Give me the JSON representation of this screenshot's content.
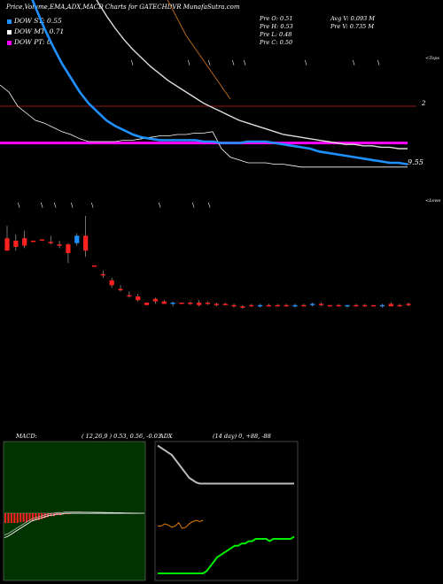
{
  "header": {
    "title": "Price,Volume,EMA,ADX,MACD Charts for GATECHDVR MunafaSutra.com",
    "open": "Pre  O: 0.51",
    "high": "Pre  H: 0.53",
    "low": "Pre  L: 0.48",
    "close": "Pre  C: 0.50",
    "avg_vol": "Avg V: 0.093 M",
    "pre_vol": "Pre  V: 0.735 M"
  },
  "legend": [
    {
      "label": "DOW ST: 0.55",
      "color": "#1e90ff"
    },
    {
      "label": "DOW MT: 0.71",
      "color": "#ffffff"
    },
    {
      "label": "DOW PT: 0",
      "color": "#ff00ff"
    }
  ],
  "labels": {
    "price_marker": "9.55",
    "top_tag": "<Tops",
    "low_tag": "<Lows",
    "level_2": "2"
  },
  "macd_panel": {
    "title": "MACD:",
    "params": "( 12,26,9 ) 0.53,  0.56,  -0.03"
  },
  "adx_panel": {
    "title": "ADX",
    "params": "(14  day) 0,  +88,  -88"
  },
  "colors": {
    "up": "#1e90ff",
    "down": "#ff2020",
    "macd_bg": "#003300",
    "adx_line": "#00ee00",
    "pdi": "#ff8800"
  },
  "chart_data": {
    "type": "candlestick",
    "title": "Price,Volume,EMA,ADX,MACD Charts for GATECHDVR MunafaSutra.com",
    "ohlc": [
      {
        "o": 1.02,
        "h": 1.12,
        "l": 0.92,
        "c": 0.92,
        "dir": "down"
      },
      {
        "o": 0.95,
        "h": 1.05,
        "l": 0.92,
        "c": 1.0,
        "dir": "down"
      },
      {
        "o": 0.96,
        "h": 1.08,
        "l": 0.94,
        "c": 1.02,
        "dir": "down"
      },
      {
        "o": 1.0,
        "h": 1.0,
        "l": 1.0,
        "c": 1.0,
        "dir": "down"
      },
      {
        "o": 1.01,
        "h": 1.01,
        "l": 1.01,
        "c": 1.01,
        "dir": "down"
      },
      {
        "o": 0.99,
        "h": 1.04,
        "l": 0.97,
        "c": 0.99,
        "dir": "down"
      },
      {
        "o": 0.97,
        "h": 1.0,
        "l": 0.94,
        "c": 0.96,
        "dir": "down"
      },
      {
        "o": 0.97,
        "h": 0.98,
        "l": 0.82,
        "c": 0.9,
        "dir": "down"
      },
      {
        "o": 0.98,
        "h": 1.06,
        "l": 0.96,
        "c": 1.04,
        "dir": "up"
      },
      {
        "o": 1.04,
        "h": 1.2,
        "l": 0.87,
        "c": 0.92,
        "dir": "down"
      },
      {
        "o": 0.8,
        "h": 0.8,
        "l": 0.8,
        "c": 0.8,
        "dir": "down"
      },
      {
        "o": 0.73,
        "h": 0.76,
        "l": 0.7,
        "c": 0.72,
        "dir": "down"
      },
      {
        "o": 0.68,
        "h": 0.7,
        "l": 0.62,
        "c": 0.64,
        "dir": "down"
      },
      {
        "o": 0.61,
        "h": 0.64,
        "l": 0.59,
        "c": 0.6,
        "dir": "down"
      },
      {
        "o": 0.56,
        "h": 0.59,
        "l": 0.54,
        "c": 0.55,
        "dir": "down"
      },
      {
        "o": 0.55,
        "h": 0.57,
        "l": 0.51,
        "c": 0.52,
        "dir": "down"
      },
      {
        "o": 0.5,
        "h": 0.5,
        "l": 0.48,
        "c": 0.48,
        "dir": "down"
      },
      {
        "o": 0.53,
        "h": 0.54,
        "l": 0.49,
        "c": 0.51,
        "dir": "down"
      },
      {
        "o": 0.51,
        "h": 0.52,
        "l": 0.49,
        "c": 0.49,
        "dir": "down"
      },
      {
        "o": 0.49,
        "h": 0.51,
        "l": 0.47,
        "c": 0.5,
        "dir": "up"
      },
      {
        "o": 0.5,
        "h": 0.5,
        "l": 0.5,
        "c": 0.5,
        "dir": "down"
      },
      {
        "o": 0.5,
        "h": 0.51,
        "l": 0.48,
        "c": 0.49,
        "dir": "down"
      },
      {
        "o": 0.5,
        "h": 0.52,
        "l": 0.47,
        "c": 0.48,
        "dir": "down"
      },
      {
        "o": 0.5,
        "h": 0.51,
        "l": 0.48,
        "c": 0.49,
        "dir": "down"
      },
      {
        "o": 0.49,
        "h": 0.5,
        "l": 0.47,
        "c": 0.48,
        "dir": "down"
      },
      {
        "o": 0.49,
        "h": 0.5,
        "l": 0.48,
        "c": 0.48,
        "dir": "down"
      },
      {
        "o": 0.48,
        "h": 0.49,
        "l": 0.46,
        "c": 0.47,
        "dir": "down"
      },
      {
        "o": 0.47,
        "h": 0.48,
        "l": 0.45,
        "c": 0.46,
        "dir": "down"
      },
      {
        "o": 0.48,
        "h": 0.49,
        "l": 0.47,
        "c": 0.48,
        "dir": "down"
      },
      {
        "o": 0.47,
        "h": 0.49,
        "l": 0.46,
        "c": 0.48,
        "dir": "up"
      },
      {
        "o": 0.48,
        "h": 0.49,
        "l": 0.47,
        "c": 0.48,
        "dir": "down"
      },
      {
        "o": 0.48,
        "h": 0.49,
        "l": 0.47,
        "c": 0.48,
        "dir": "down"
      },
      {
        "o": 0.48,
        "h": 0.49,
        "l": 0.47,
        "c": 0.48,
        "dir": "down"
      },
      {
        "o": 0.47,
        "h": 0.49,
        "l": 0.46,
        "c": 0.48,
        "dir": "up"
      },
      {
        "o": 0.48,
        "h": 0.49,
        "l": 0.47,
        "c": 0.48,
        "dir": "down"
      },
      {
        "o": 0.48,
        "h": 0.5,
        "l": 0.47,
        "c": 0.49,
        "dir": "up"
      },
      {
        "o": 0.49,
        "h": 0.5,
        "l": 0.47,
        "c": 0.48,
        "dir": "down"
      },
      {
        "o": 0.48,
        "h": 0.48,
        "l": 0.48,
        "c": 0.48,
        "dir": "down"
      },
      {
        "o": 0.48,
        "h": 0.49,
        "l": 0.47,
        "c": 0.48,
        "dir": "down"
      },
      {
        "o": 0.47,
        "h": 0.48,
        "l": 0.46,
        "c": 0.48,
        "dir": "up"
      },
      {
        "o": 0.48,
        "h": 0.49,
        "l": 0.47,
        "c": 0.48,
        "dir": "down"
      },
      {
        "o": 0.48,
        "h": 0.49,
        "l": 0.47,
        "c": 0.48,
        "dir": "down"
      },
      {
        "o": 0.48,
        "h": 0.48,
        "l": 0.48,
        "c": 0.48,
        "dir": "down"
      },
      {
        "o": 0.47,
        "h": 0.49,
        "l": 0.46,
        "c": 0.48,
        "dir": "up"
      },
      {
        "o": 0.49,
        "h": 0.5,
        "l": 0.47,
        "c": 0.47,
        "dir": "down"
      },
      {
        "o": 0.48,
        "h": 0.49,
        "l": 0.47,
        "c": 0.48,
        "dir": "down"
      },
      {
        "o": 0.48,
        "h": 0.5,
        "l": 0.47,
        "c": 0.49,
        "dir": "down"
      }
    ],
    "dow_st": [
      3.1,
      3.05,
      2.98,
      2.85,
      2.7,
      2.55,
      2.42,
      2.3,
      2.2,
      2.1,
      2.02,
      1.96,
      1.9,
      1.86,
      1.83,
      1.8,
      1.78,
      1.77,
      1.76,
      1.76,
      1.76,
      1.76,
      1.76,
      1.75,
      1.75,
      1.74,
      1.74,
      1.74,
      1.75,
      1.75,
      1.75,
      1.74,
      1.73,
      1.72,
      1.71,
      1.7,
      1.68,
      1.67,
      1.66,
      1.65,
      1.64,
      1.63,
      1.62,
      1.61,
      1.6,
      1.6,
      1.59
    ],
    "dow_mt": [
      4.95,
      4.55,
      4.25,
      4.0,
      3.78,
      3.58,
      3.4,
      3.24,
      3.1,
      2.97,
      2.85,
      2.74,
      2.64,
      2.55,
      2.47,
      2.4,
      2.34,
      2.28,
      2.23,
      2.18,
      2.14,
      2.1,
      2.06,
      2.02,
      1.99,
      1.96,
      1.93,
      1.9,
      1.88,
      1.86,
      1.84,
      1.82,
      1.8,
      1.79,
      1.78,
      1.77,
      1.76,
      1.75,
      1.74,
      1.73,
      1.73,
      1.72,
      1.72,
      1.71,
      1.71,
      1.7,
      1.7
    ],
    "ema_white": [
      2.15,
      2.1,
      2.0,
      1.95,
      1.9,
      1.88,
      1.85,
      1.82,
      1.8,
      1.77,
      1.75,
      1.75,
      1.75,
      1.75,
      1.76,
      1.76,
      1.77,
      1.78,
      1.79,
      1.79,
      1.8,
      1.8,
      1.81,
      1.81,
      1.82,
      1.7,
      1.64,
      1.62,
      1.6,
      1.6,
      1.6,
      1.59,
      1.59,
      1.58,
      1.57,
      1.57,
      1.57,
      1.57,
      1.57,
      1.57,
      1.57,
      1.57,
      1.57,
      1.57,
      1.57,
      1.57,
      1.57
    ],
    "trend_line": [
      5.0,
      4.75,
      4.5,
      4.3,
      4.1,
      3.9,
      3.7,
      3.5,
      3.3,
      3.1,
      2.9,
      2.7,
      2.5,
      2.35,
      2.2,
      2.05
    ],
    "dow_pt_level": 1.74,
    "macd": [
      -0.25,
      -0.24,
      -0.22,
      -0.2,
      -0.18,
      -0.16,
      -0.14,
      -0.12,
      -0.1,
      -0.08,
      -0.07,
      -0.06,
      -0.05,
      -0.04,
      -0.03,
      -0.02,
      -0.02,
      -0.01,
      -0.01,
      -0.01,
      0,
      0,
      0,
      0,
      0,
      0,
      0,
      0,
      0,
      0,
      0,
      0,
      0,
      0,
      0,
      0,
      0,
      0,
      0,
      0,
      0,
      0,
      0,
      0,
      0,
      0,
      0
    ],
    "macd_hist": [
      -0.1,
      -0.1,
      -0.1,
      -0.1,
      -0.1,
      -0.09,
      -0.09,
      -0.09,
      -0.08,
      -0.08,
      -0.07,
      -0.07,
      -0.06,
      -0.05,
      -0.04,
      -0.03,
      -0.03,
      -0.02,
      -0.02,
      -0.01,
      -0.01,
      -0.01,
      0,
      0,
      0,
      0,
      0,
      0,
      0,
      0,
      0,
      0,
      0,
      0,
      0,
      0,
      0,
      0,
      0,
      0,
      0,
      0,
      0,
      0,
      0,
      0,
      0
    ],
    "adx": [
      88,
      86,
      84,
      82,
      80,
      76,
      72,
      68,
      64,
      60,
      58,
      56,
      55,
      55,
      55,
      55,
      55,
      55,
      55,
      55,
      55,
      55,
      55,
      55,
      55,
      55,
      55,
      55,
      55,
      55,
      55,
      55,
      55,
      55,
      55,
      55,
      55,
      55,
      55,
      55
    ],
    "adx_green": [
      0,
      0,
      0,
      0,
      0,
      0,
      0,
      0,
      0,
      0,
      0,
      0,
      0,
      0,
      2,
      6,
      10,
      14,
      16,
      18,
      20,
      22,
      24,
      24,
      26,
      26,
      28,
      28,
      30,
      30,
      30,
      30,
      28,
      30,
      30,
      30,
      30,
      30,
      30,
      32
    ],
    "pdi_orange": [
      18,
      18,
      20,
      19,
      17,
      18,
      21,
      16,
      17,
      20,
      22,
      23,
      22,
      23,
      null,
      null,
      null,
      null,
      null,
      null,
      null,
      null,
      null,
      null,
      null,
      null,
      null,
      null,
      null,
      null,
      null,
      null,
      null,
      null,
      null,
      null,
      null,
      null,
      null,
      null
    ]
  }
}
